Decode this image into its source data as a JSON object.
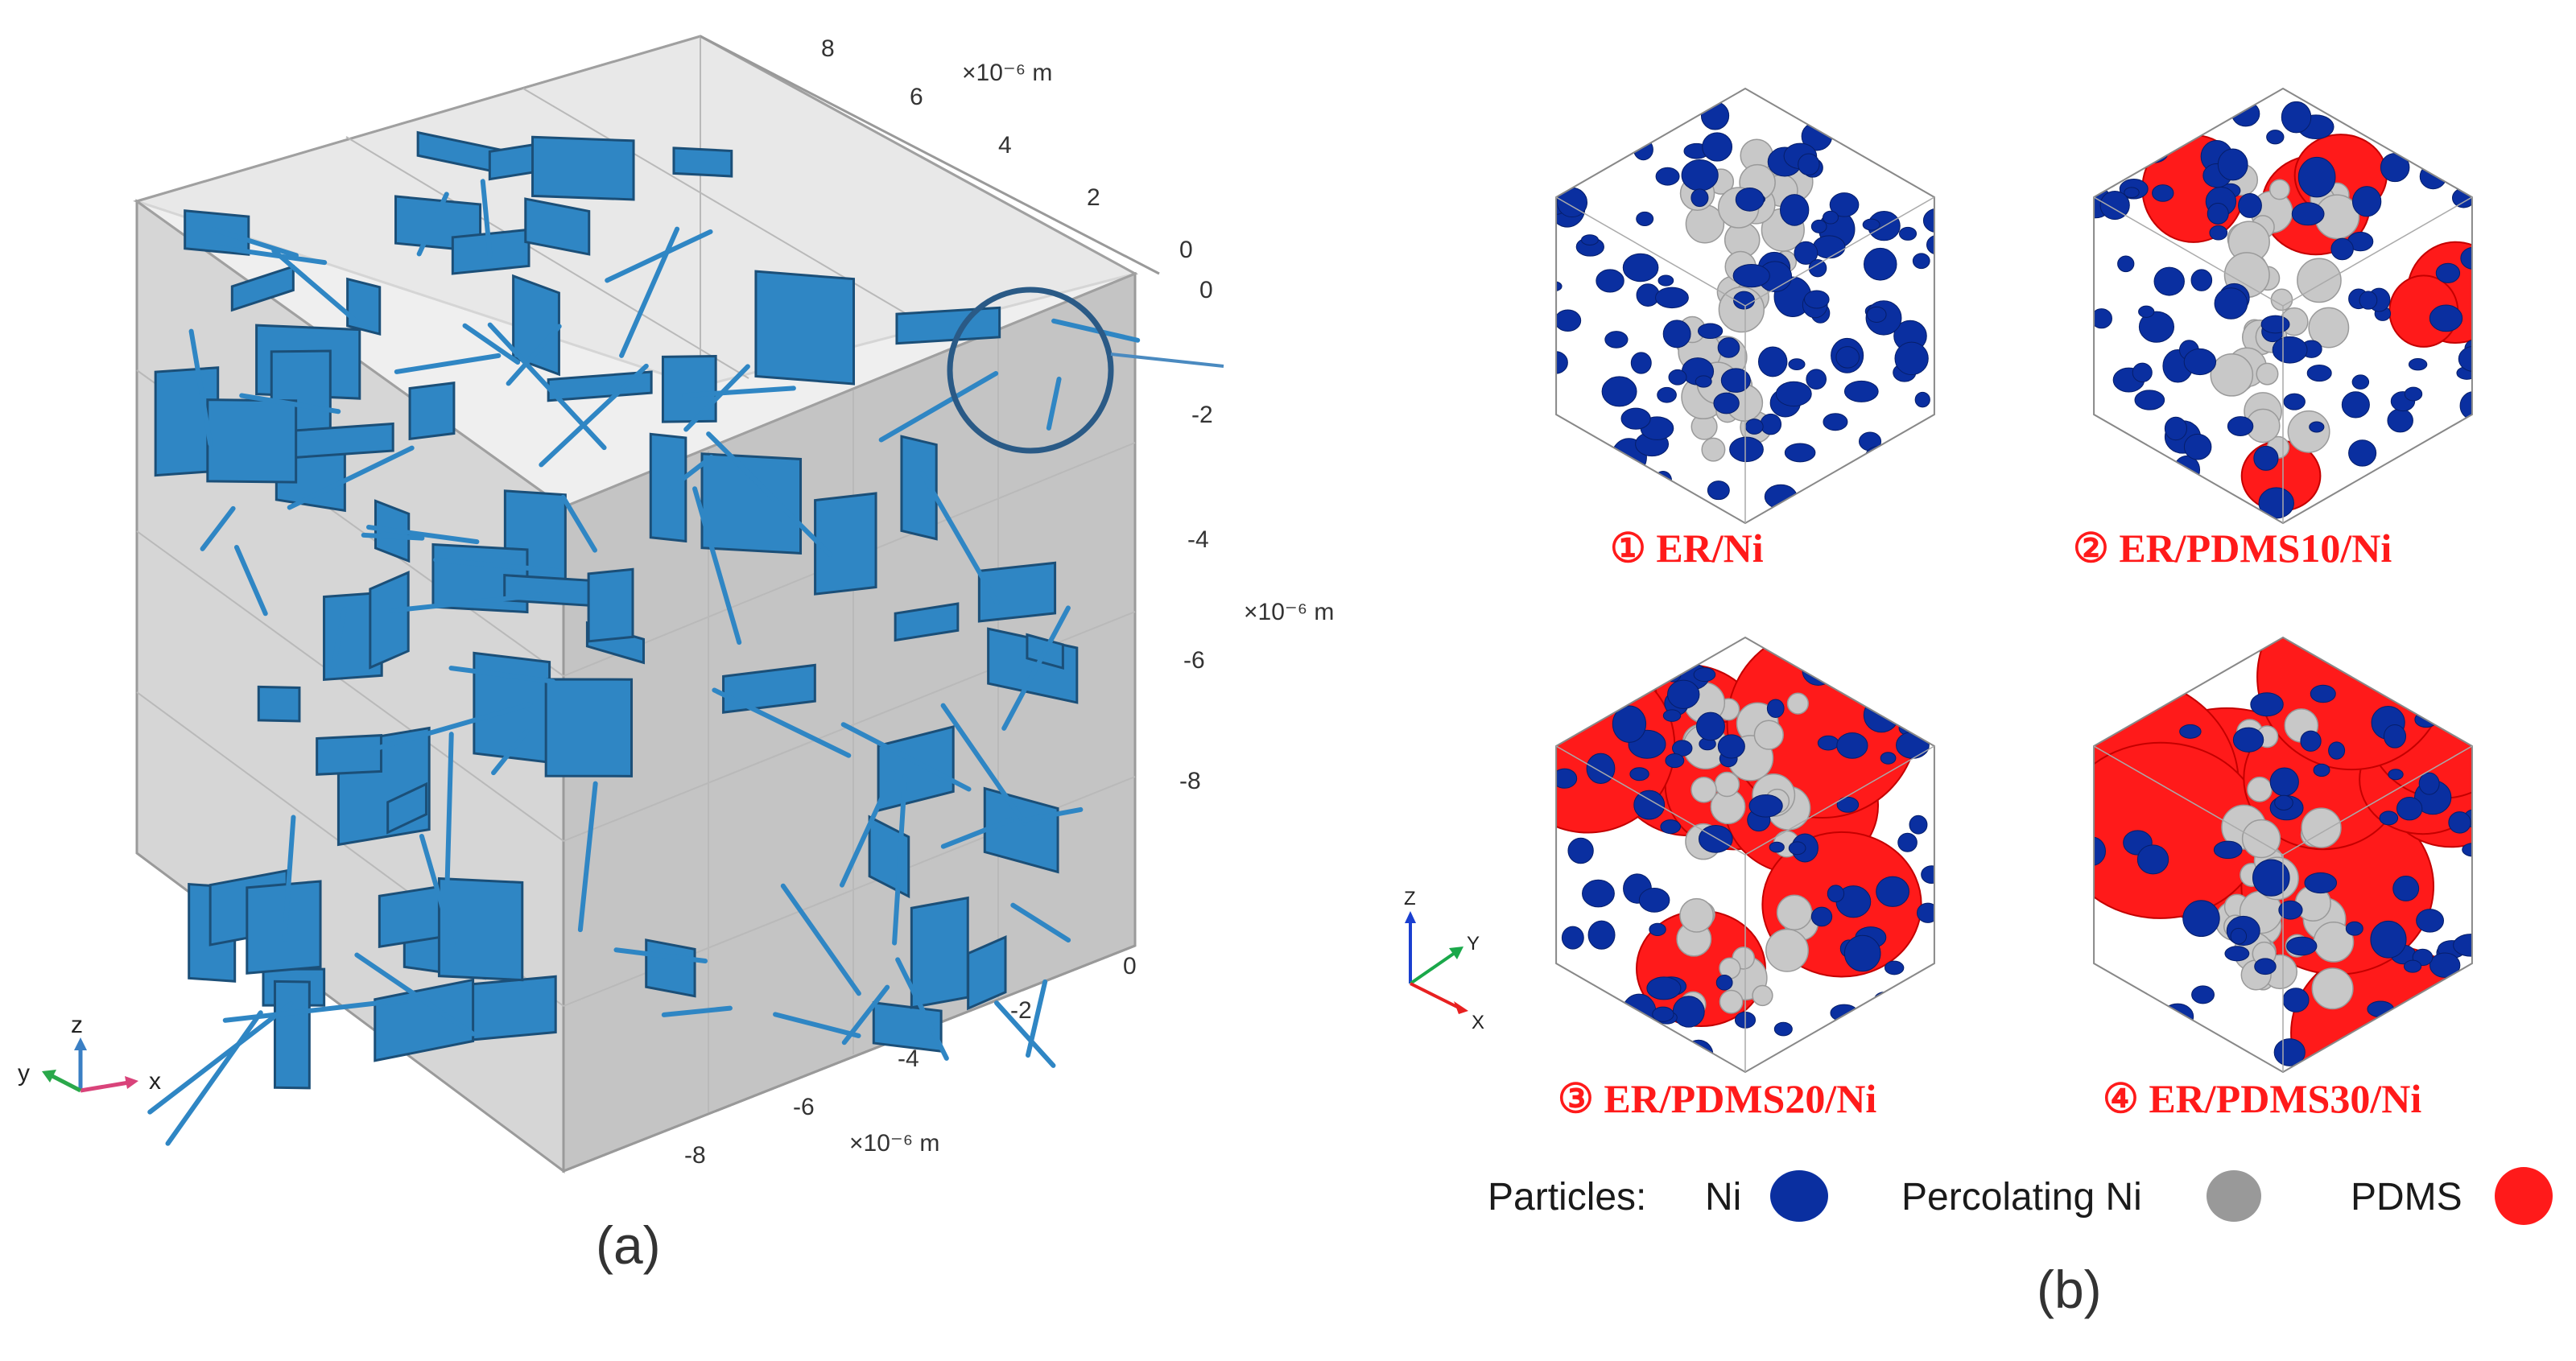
{
  "panel_a": {
    "label": "(a)",
    "z_axis_ticks": [
      "8",
      "6",
      "4",
      "2",
      "0"
    ],
    "z_axis_unit": "×10⁻⁶ m",
    "y_axis_ticks": [
      "0",
      "-2",
      "-4",
      "-6",
      "-8"
    ],
    "y_axis_unit": "×10⁻⁶ m",
    "x_axis_ticks": [
      "0",
      "-2",
      "-4",
      "-6",
      "-8"
    ],
    "x_axis_unit": "×10⁻⁶ m",
    "triad": {
      "z": "z",
      "y": "y",
      "x": "x"
    },
    "colors": {
      "flake": "#2f86c4",
      "flake_edge": "#1b4f78",
      "box": "#cfcfcf"
    }
  },
  "panel_b": {
    "label": "(b)",
    "samples": [
      "① ER/Ni",
      "② ER/PDMS10/Ni",
      "③ ER/PDMS20/Ni",
      "④ ER/PDMS30/Ni"
    ],
    "triad": {
      "z": "Z",
      "y": "Y",
      "x": "X"
    },
    "legend": {
      "prefix": "Particles:",
      "items": [
        {
          "label": "Ni",
          "color": "#0a2fa0"
        },
        {
          "label": "Percolating Ni",
          "color": "#999999"
        },
        {
          "label": "PDMS",
          "color": "#ff1a1a"
        }
      ]
    }
  }
}
